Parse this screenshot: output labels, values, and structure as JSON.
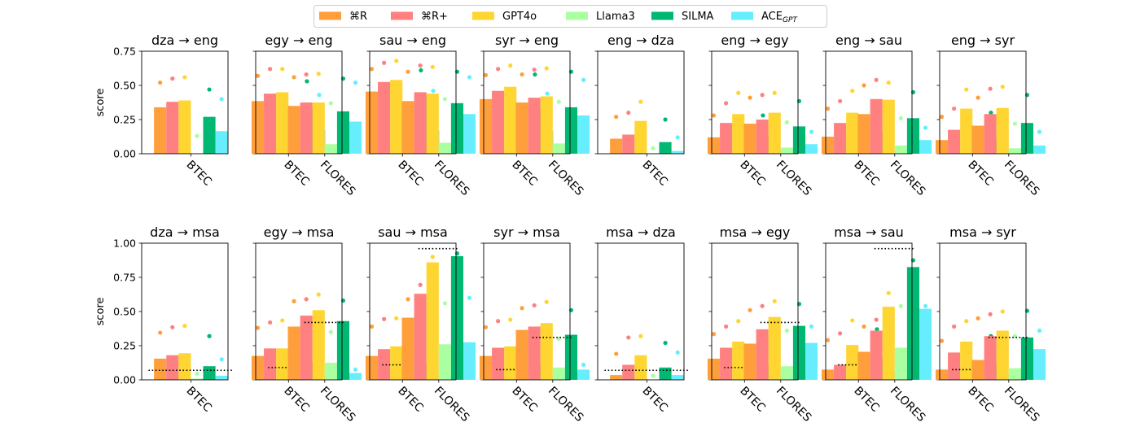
{
  "legend": {
    "items": [
      {
        "name": "⌘R",
        "sub": "",
        "color": "#ff9f3c"
      },
      {
        "name": "⌘R+",
        "sub": "",
        "color": "#ff8080"
      },
      {
        "name": "GPT4o",
        "sub": "",
        "color": "#ffd531"
      },
      {
        "name": "Llama3",
        "sub": "",
        "color": "#aaffa0"
      },
      {
        "name": "SILMA",
        "sub": "",
        "color": "#00b872"
      },
      {
        "name": "ACE",
        "sub": "GPT",
        "color": "#66eeff"
      }
    ]
  },
  "chart_data": [
    {
      "type": "bar",
      "row": 0,
      "title": "dza → eng",
      "ylabel": "score",
      "ylim": [
        0,
        0.75
      ],
      "yticks": [
        "0.00",
        "0.25",
        "0.50",
        "0.75"
      ],
      "categories": [
        "BTEC"
      ],
      "bars": [
        [
          0.34,
          0.38,
          0.39,
          0.0,
          0.27,
          0.165
        ]
      ],
      "dots": [
        [
          0.52,
          0.55,
          0.56,
          0.13,
          0.47,
          0.4
        ]
      ],
      "hlines": []
    },
    {
      "type": "bar",
      "row": 0,
      "title": "egy → eng",
      "ylabel": "",
      "ylim": [
        0,
        0.75
      ],
      "yticks": [],
      "categories": [
        "BTEC",
        "FLORES"
      ],
      "bars": [
        [
          0.385,
          0.44,
          0.45,
          0.0,
          0.34,
          0.175
        ],
        [
          0.35,
          0.375,
          0.375,
          0.07,
          0.31,
          0.235
        ]
      ],
      "dots": [
        [
          0.57,
          0.62,
          0.62,
          0.14,
          0.53,
          0.43
        ],
        [
          0.56,
          0.58,
          0.585,
          0.37,
          0.55,
          0.52
        ]
      ],
      "hlines": []
    },
    {
      "type": "bar",
      "row": 0,
      "title": "sau → eng",
      "ylabel": "",
      "ylim": [
        0,
        0.75
      ],
      "yticks": [],
      "categories": [
        "BTEC",
        "FLORES"
      ],
      "bars": [
        [
          0.455,
          0.525,
          0.54,
          0.02,
          0.43,
          0.17
        ],
        [
          0.385,
          0.45,
          0.44,
          0.08,
          0.37,
          0.29
        ]
      ],
      "dots": [
        [
          0.62,
          0.665,
          0.68,
          0.16,
          0.61,
          0.46
        ],
        [
          0.6,
          0.645,
          0.635,
          0.4,
          0.6,
          0.56
        ]
      ],
      "hlines": []
    },
    {
      "type": "bar",
      "row": 0,
      "title": "syr → eng",
      "ylabel": "",
      "ylim": [
        0,
        0.75
      ],
      "yticks": [],
      "categories": [
        "BTEC",
        "FLORES"
      ],
      "bars": [
        [
          0.4,
          0.46,
          0.49,
          0.0,
          0.335,
          0.165
        ],
        [
          0.375,
          0.41,
          0.42,
          0.075,
          0.34,
          0.28
        ]
      ],
      "dots": [
        [
          0.575,
          0.62,
          0.645,
          0.14,
          0.58,
          0.44
        ],
        [
          0.58,
          0.615,
          0.625,
          0.38,
          0.6,
          0.54
        ]
      ],
      "hlines": []
    },
    {
      "type": "bar",
      "row": 0,
      "title": "eng → dza",
      "ylabel": "",
      "ylim": [
        0,
        0.75
      ],
      "yticks": [],
      "categories": [
        "BTEC"
      ],
      "bars": [
        [
          0.11,
          0.14,
          0.24,
          0.0,
          0.085,
          0.02
        ]
      ],
      "dots": [
        [
          0.27,
          0.3,
          0.38,
          0.04,
          0.25,
          0.12
        ]
      ],
      "hlines": []
    },
    {
      "type": "bar",
      "row": 0,
      "title": "eng → egy",
      "ylabel": "",
      "ylim": [
        0,
        0.75
      ],
      "yticks": [],
      "categories": [
        "BTEC",
        "FLORES"
      ],
      "bars": [
        [
          0.12,
          0.225,
          0.29,
          0.0,
          0.13,
          0.03
        ],
        [
          0.22,
          0.25,
          0.3,
          0.045,
          0.2,
          0.07
        ]
      ],
      "dots": [
        [
          0.28,
          0.37,
          0.445,
          0.07,
          0.28,
          0.145
        ],
        [
          0.41,
          0.43,
          0.445,
          0.23,
          0.385,
          0.16
        ]
      ],
      "hlines": []
    },
    {
      "type": "bar",
      "row": 0,
      "title": "eng → sau",
      "ylabel": "",
      "ylim": [
        0,
        0.75
      ],
      "yticks": [],
      "categories": [
        "BTEC",
        "FLORES"
      ],
      "bars": [
        [
          0.125,
          0.225,
          0.3,
          0.0,
          0.16,
          0.03
        ],
        [
          0.29,
          0.4,
          0.395,
          0.06,
          0.26,
          0.1
        ]
      ],
      "dots": [
        [
          0.33,
          0.385,
          0.46,
          0.06,
          0.35,
          0.17
        ],
        [
          0.5,
          0.54,
          0.52,
          0.26,
          0.45,
          0.19
        ]
      ],
      "hlines": []
    },
    {
      "type": "bar",
      "row": 0,
      "title": "eng → syr",
      "ylabel": "",
      "ylim": [
        0,
        0.75
      ],
      "yticks": [],
      "categories": [
        "BTEC",
        "FLORES"
      ],
      "bars": [
        [
          0.1,
          0.175,
          0.33,
          0.0,
          0.11,
          0.03
        ],
        [
          0.205,
          0.29,
          0.335,
          0.04,
          0.225,
          0.06
        ]
      ],
      "dots": [
        [
          0.27,
          0.33,
          0.47,
          0.06,
          0.3,
          0.14
        ],
        [
          0.41,
          0.475,
          0.49,
          0.22,
          0.43,
          0.16
        ]
      ],
      "hlines": []
    },
    {
      "type": "bar",
      "row": 1,
      "title": "dza → msa",
      "ylabel": "score",
      "ylim": [
        0,
        1.0
      ],
      "yticks": [
        "0.00",
        "0.25",
        "0.50",
        "0.75",
        "1.00"
      ],
      "categories": [
        "BTEC"
      ],
      "bars": [
        [
          0.155,
          0.18,
          0.195,
          0.01,
          0.1,
          0.03
        ]
      ],
      "dots": [
        [
          0.345,
          0.385,
          0.395,
          0.045,
          0.32,
          0.15
        ]
      ],
      "hlines": [
        0.07
      ]
    },
    {
      "type": "bar",
      "row": 1,
      "title": "egy → msa",
      "ylabel": "",
      "ylim": [
        0,
        1.0
      ],
      "yticks": [],
      "categories": [
        "BTEC",
        "FLORES"
      ],
      "bars": [
        [
          0.175,
          0.23,
          0.23,
          0.01,
          0.13,
          0.03
        ],
        [
          0.39,
          0.47,
          0.51,
          0.125,
          0.43,
          0.05
        ]
      ],
      "dots": [
        [
          0.38,
          0.42,
          0.435,
          0.07,
          0.35,
          0.15
        ],
        [
          0.575,
          0.59,
          0.625,
          0.35,
          0.58,
          0.075
        ]
      ],
      "hlines": [
        0.09,
        0.42
      ]
    },
    {
      "type": "bar",
      "row": 1,
      "title": "sau → msa",
      "ylabel": "",
      "ylim": [
        0,
        1.0
      ],
      "yticks": [],
      "categories": [
        "BTEC",
        "FLORES"
      ],
      "bars": [
        [
          0.175,
          0.225,
          0.245,
          0.02,
          0.125,
          0.04
        ],
        [
          0.455,
          0.63,
          0.86,
          0.26,
          0.905,
          0.275
        ]
      ],
      "dots": [
        [
          0.39,
          0.445,
          0.45,
          0.09,
          0.355,
          0.14
        ],
        [
          0.59,
          0.695,
          0.9,
          0.56,
          0.925,
          0.6
        ]
      ],
      "hlines": [
        0.11,
        0.96
      ]
    },
    {
      "type": "bar",
      "row": 1,
      "title": "syr → msa",
      "ylabel": "",
      "ylim": [
        0,
        1.0
      ],
      "yticks": [],
      "categories": [
        "BTEC",
        "FLORES"
      ],
      "bars": [
        [
          0.175,
          0.235,
          0.245,
          0.01,
          0.115,
          0.035
        ],
        [
          0.365,
          0.39,
          0.415,
          0.09,
          0.33,
          0.075
        ]
      ],
      "dots": [
        [
          0.385,
          0.43,
          0.44,
          0.05,
          0.32,
          0.13
        ],
        [
          0.525,
          0.545,
          0.57,
          0.3,
          0.51,
          0.11
        ]
      ],
      "hlines": [
        0.075,
        0.31
      ]
    },
    {
      "type": "bar",
      "row": 1,
      "title": "msa → dza",
      "ylabel": "",
      "ylim": [
        0,
        1.0
      ],
      "yticks": [],
      "categories": [
        "BTEC"
      ],
      "bars": [
        [
          0.035,
          0.11,
          0.18,
          0.0,
          0.09,
          0.035
        ]
      ],
      "dots": [
        [
          0.19,
          0.31,
          0.32,
          0.03,
          0.27,
          0.2
        ]
      ],
      "hlines": [
        0.07
      ]
    },
    {
      "type": "bar",
      "row": 1,
      "title": "msa → egy",
      "ylabel": "",
      "ylim": [
        0,
        1.0
      ],
      "yticks": [],
      "categories": [
        "BTEC",
        "FLORES"
      ],
      "bars": [
        [
          0.155,
          0.235,
          0.28,
          0.01,
          0.11,
          0.04
        ],
        [
          0.265,
          0.37,
          0.46,
          0.1,
          0.395,
          0.27
        ]
      ],
      "dots": [
        [
          0.335,
          0.39,
          0.43,
          0.05,
          0.31,
          0.14
        ],
        [
          0.51,
          0.54,
          0.575,
          0.36,
          0.555,
          0.39
        ]
      ],
      "hlines": [
        0.09,
        0.42
      ]
    },
    {
      "type": "bar",
      "row": 1,
      "title": "msa → sau",
      "ylabel": "",
      "ylim": [
        0,
        1.0
      ],
      "yticks": [],
      "categories": [
        "BTEC",
        "FLORES"
      ],
      "bars": [
        [
          0.075,
          0.11,
          0.255,
          0.0,
          0.16,
          0.055
        ],
        [
          0.205,
          0.36,
          0.535,
          0.235,
          0.825,
          0.52
        ]
      ],
      "dots": [
        [
          0.29,
          0.34,
          0.435,
          0.05,
          0.37,
          0.27
        ],
        [
          0.39,
          0.44,
          0.635,
          0.54,
          0.875,
          0.54
        ]
      ],
      "hlines": [
        0.11,
        0.96
      ]
    },
    {
      "type": "bar",
      "row": 1,
      "title": "msa → syr",
      "ylabel": "",
      "ylim": [
        0,
        1.0
      ],
      "yticks": [],
      "categories": [
        "BTEC",
        "FLORES"
      ],
      "bars": [
        [
          0.075,
          0.2,
          0.28,
          0.0,
          0.115,
          0.04
        ],
        [
          0.145,
          0.32,
          0.36,
          0.085,
          0.31,
          0.225
        ]
      ],
      "dots": [
        [
          0.285,
          0.39,
          0.43,
          0.05,
          0.32,
          0.14
        ],
        [
          0.45,
          0.48,
          0.5,
          0.32,
          0.505,
          0.36
        ]
      ],
      "hlines": [
        0.075,
        0.31
      ]
    }
  ]
}
